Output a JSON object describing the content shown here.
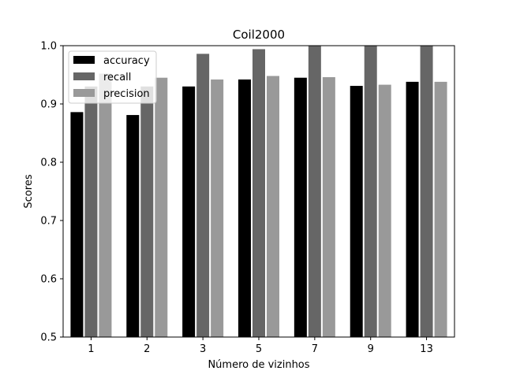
{
  "chart_data": {
    "type": "bar",
    "title": "Coil2000",
    "xlabel": "Número de vizinhos",
    "ylabel": "Scores",
    "categories": [
      "1",
      "2",
      "3",
      "5",
      "7",
      "9",
      "13"
    ],
    "ylim": [
      0.5,
      1.0
    ],
    "yticks": [
      "0.5",
      "0.6",
      "0.7",
      "0.8",
      "0.9",
      "1.0"
    ],
    "grid": false,
    "legend_position": "top-left",
    "series": [
      {
        "name": "accuracy",
        "color": "#000000",
        "values": [
          0.886,
          0.881,
          0.93,
          0.942,
          0.945,
          0.931,
          0.938
        ]
      },
      {
        "name": "recall",
        "color": "#666666",
        "values": [
          0.93,
          0.93,
          0.986,
          0.994,
          1.0,
          1.0,
          1.0
        ]
      },
      {
        "name": "precision",
        "color": "#999999",
        "values": [
          0.952,
          0.945,
          0.942,
          0.948,
          0.946,
          0.933,
          0.938
        ]
      }
    ]
  }
}
